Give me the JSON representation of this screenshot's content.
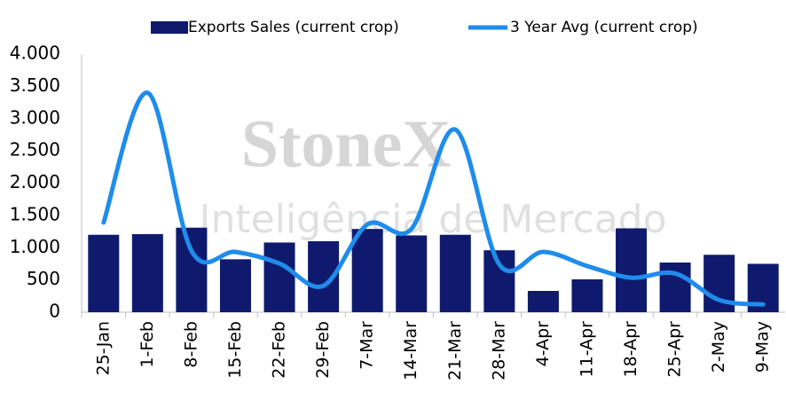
{
  "chart_data": {
    "type": "bar",
    "watermark": [
      "StoneX",
      "Inteligência de Mercado"
    ],
    "categories": [
      "25-Jan",
      "1-Feb",
      "8-Feb",
      "15-Feb",
      "22-Feb",
      "29-Feb",
      "7-Mar",
      "14-Mar",
      "21-Mar",
      "28-Mar",
      "4-Apr",
      "11-Apr",
      "18-Apr",
      "25-Apr",
      "2-May",
      "9-May"
    ],
    "series": [
      {
        "name": "Exports Sales (current crop)",
        "type": "bar",
        "color": "#0f1a6e",
        "values": [
          1200,
          1210,
          1310,
          820,
          1080,
          1100,
          1290,
          1190,
          1200,
          960,
          330,
          510,
          1300,
          770,
          890,
          750
        ]
      },
      {
        "name": "3 Year Avg (current crop)",
        "type": "line",
        "color": "#1f8ceb",
        "values": [
          1390,
          3400,
          950,
          935,
          755,
          410,
          1360,
          1290,
          2830,
          740,
          935,
          715,
          535,
          600,
          190,
          120
        ]
      }
    ],
    "ylim": [
      0,
      4000
    ],
    "yticks": [
      0,
      500,
      {
        "value": 1000,
        "label": "1.000"
      },
      {
        "value": 1500,
        "label": "1.500"
      },
      {
        "value": 2000,
        "label": "2.000"
      },
      {
        "value": 2500,
        "label": "2.500"
      },
      {
        "value": 3000,
        "label": "3.000"
      },
      {
        "value": 3500,
        "label": "3.500"
      },
      {
        "value": 4000,
        "label": "4.000"
      }
    ],
    "grid": false
  }
}
